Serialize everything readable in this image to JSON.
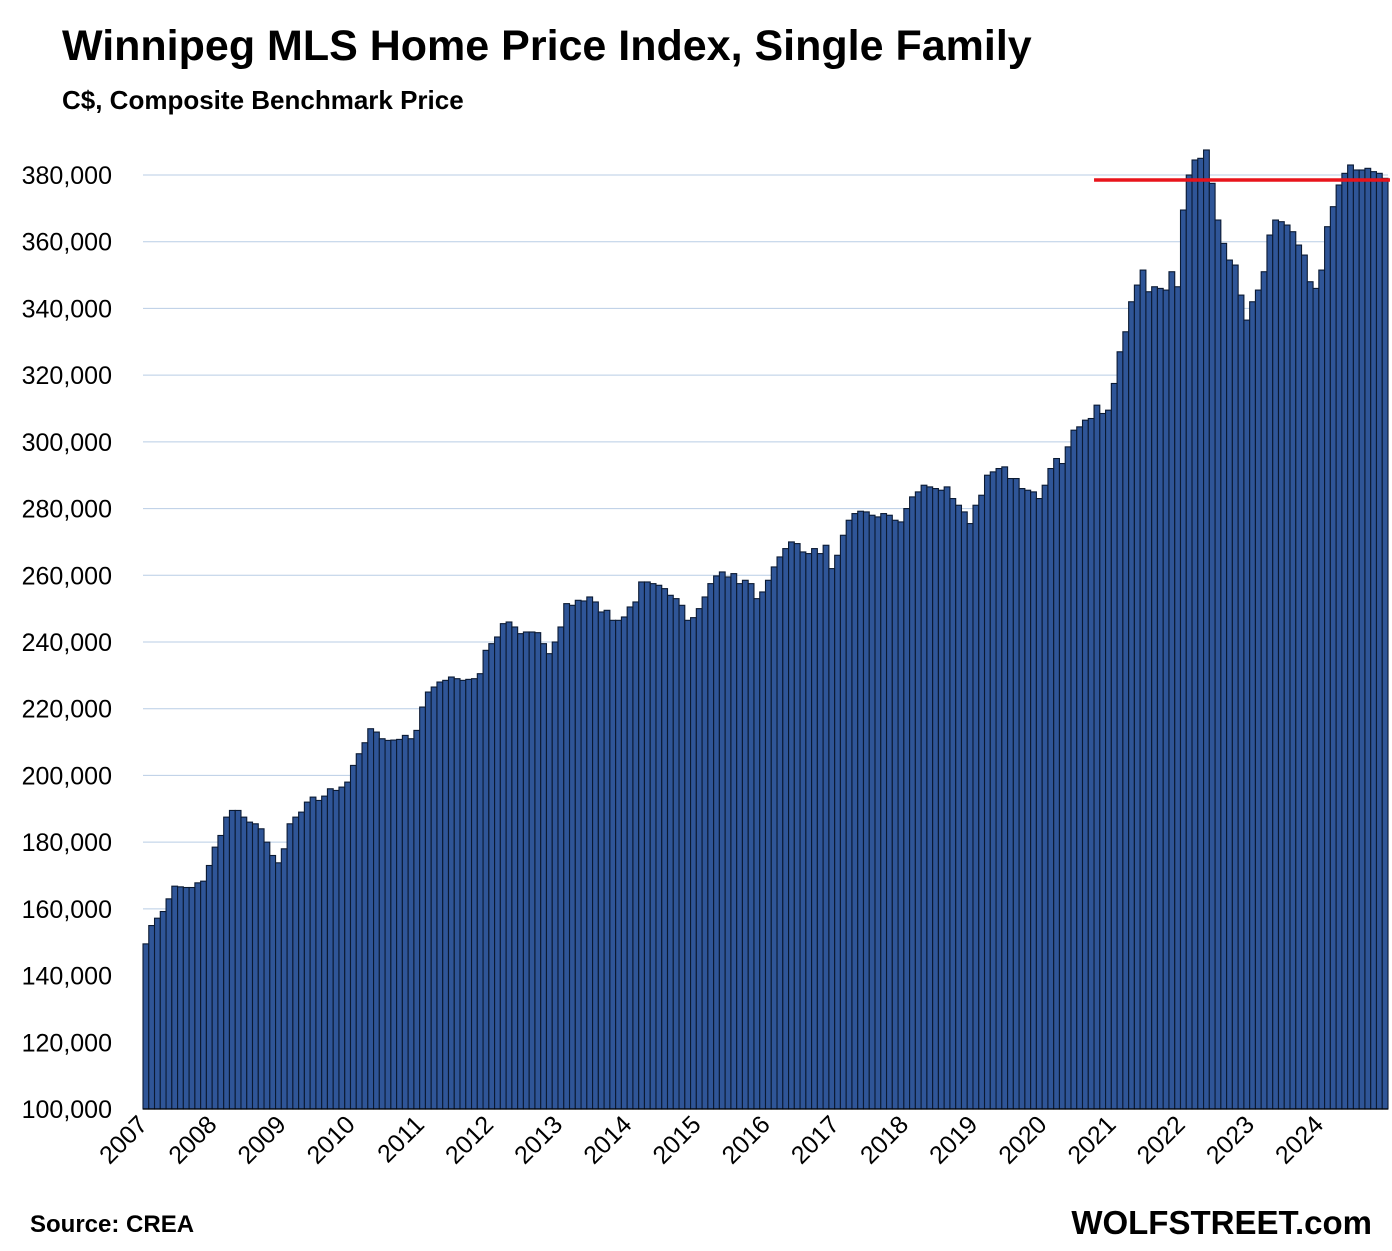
{
  "header": {
    "title": "Winnipeg MLS Home Price Index, Single Family",
    "subtitle": "C$, Composite Benchmark Price"
  },
  "footer": {
    "source": "Source: CREA",
    "brand": "WOLFSTREET.com"
  },
  "colors": {
    "bar_fill": "#2f5597",
    "bar_stroke": "#0b1a33",
    "grid": "#b9cde5",
    "reference_line": "#e8141b"
  },
  "chart_data": {
    "type": "bar",
    "title": "Winnipeg MLS Home Price Index, Single Family",
    "subtitle": "C$, Composite Benchmark Price",
    "frequency": "monthly",
    "start": "2007-01",
    "x_tick_labels": [
      "2007",
      "2008",
      "2009",
      "2010",
      "2011",
      "2012",
      "2013",
      "2014",
      "2015",
      "2016",
      "2017",
      "2018",
      "2019",
      "2020",
      "2021",
      "2022",
      "2023",
      "2024"
    ],
    "y_tick_labels": [
      "100,000",
      "120,000",
      "140,000",
      "160,000",
      "180,000",
      "200,000",
      "220,000",
      "240,000",
      "260,000",
      "280,000",
      "300,000",
      "320,000",
      "340,000",
      "360,000",
      "380,000"
    ],
    "ylim": [
      100000,
      390000
    ],
    "grid": "horizontal",
    "legend": "none",
    "values": [
      149500,
      155000,
      157200,
      159200,
      163000,
      166800,
      166600,
      166400,
      166400,
      167800,
      168300,
      173000,
      178500,
      182000,
      187500,
      189500,
      189500,
      187500,
      186000,
      185500,
      184000,
      180000,
      176000,
      173800,
      178000,
      185500,
      187500,
      189000,
      192000,
      193500,
      192500,
      193800,
      196000,
      195500,
      196500,
      198000,
      203000,
      206500,
      209800,
      214000,
      213000,
      211000,
      210500,
      210600,
      210800,
      212000,
      211000,
      213500,
      220500,
      225000,
      226500,
      228000,
      228500,
      229500,
      229000,
      228500,
      228800,
      229000,
      230500,
      237500,
      239500,
      241500,
      245500,
      246000,
      244500,
      242500,
      243000,
      243000,
      242800,
      239500,
      236500,
      240000,
      244500,
      251500,
      251000,
      252500,
      252300,
      253500,
      252000,
      249000,
      249500,
      246500,
      246500,
      247500,
      250500,
      252000,
      258000,
      258000,
      257500,
      257000,
      256000,
      254000,
      253000,
      251000,
      246500,
      247300,
      250000,
      253500,
      257500,
      259800,
      261000,
      259500,
      260500,
      257500,
      258500,
      257500,
      253000,
      255000,
      258500,
      262500,
      265500,
      268000,
      270000,
      269500,
      267000,
      266500,
      268000,
      266500,
      269000,
      262000,
      266000,
      272000,
      276500,
      278500,
      279200,
      279000,
      278000,
      277500,
      278500,
      278000,
      276500,
      276000,
      280000,
      283500,
      285000,
      287000,
      286500,
      286000,
      285500,
      286500,
      283000,
      281000,
      279000,
      275500,
      281000,
      284000,
      290000,
      291000,
      292000,
      292500,
      289000,
      289000,
      286000,
      285500,
      285000,
      283000,
      287000,
      292000,
      295000,
      293500,
      298500,
      303500,
      304500,
      306500,
      307000,
      311000,
      308500,
      309500,
      317500,
      327000,
      333000,
      342000,
      347000,
      351500,
      345000,
      346500,
      346000,
      345500,
      351000,
      346500,
      369500,
      380000,
      384500,
      385000,
      387500,
      377500,
      366500,
      359500,
      354500,
      353000,
      344000,
      336500,
      342000,
      345500,
      351000,
      362000,
      366500,
      366000,
      365000,
      363000,
      359000,
      356000,
      348000,
      346000,
      351500,
      364500,
      370500,
      377000,
      380500,
      383000,
      381500,
      381500,
      382000,
      381000,
      380500,
      379000
    ],
    "reference_line": {
      "value": 378500,
      "x_start": "2020-10"
    }
  }
}
